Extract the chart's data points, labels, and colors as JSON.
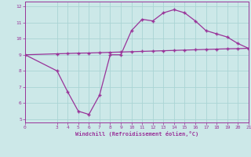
{
  "xlabel": "Windchill (Refroidissement éolien,°C)",
  "bg_color": "#cce8e8",
  "line_color": "#993399",
  "x_windchill": [
    0,
    3,
    4,
    5,
    6,
    7,
    8,
    9,
    10,
    11,
    12,
    13,
    14,
    15,
    16,
    17,
    18,
    19,
    20,
    21
  ],
  "y_windchill": [
    9.0,
    8.0,
    6.7,
    5.5,
    5.3,
    6.5,
    9.0,
    9.0,
    10.5,
    11.2,
    11.1,
    11.6,
    11.8,
    11.6,
    11.1,
    10.5,
    10.3,
    10.1,
    9.7,
    9.4
  ],
  "x_temp": [
    0,
    3,
    4,
    5,
    6,
    7,
    8,
    9,
    10,
    11,
    12,
    13,
    14,
    15,
    16,
    17,
    18,
    19,
    20,
    21
  ],
  "y_temp": [
    9.0,
    9.06,
    9.08,
    9.1,
    9.11,
    9.13,
    9.15,
    9.17,
    9.19,
    9.21,
    9.23,
    9.25,
    9.27,
    9.29,
    9.31,
    9.33,
    9.35,
    9.37,
    9.38,
    9.4
  ],
  "xlim": [
    0,
    21
  ],
  "ylim": [
    4.8,
    12.3
  ],
  "yticks": [
    5,
    6,
    7,
    8,
    9,
    10,
    11,
    12
  ],
  "xticks": [
    0,
    3,
    4,
    5,
    6,
    7,
    8,
    9,
    10,
    11,
    12,
    13,
    14,
    15,
    16,
    17,
    18,
    19,
    20,
    21
  ],
  "grid_color": "#aad4d4",
  "marker": "+"
}
